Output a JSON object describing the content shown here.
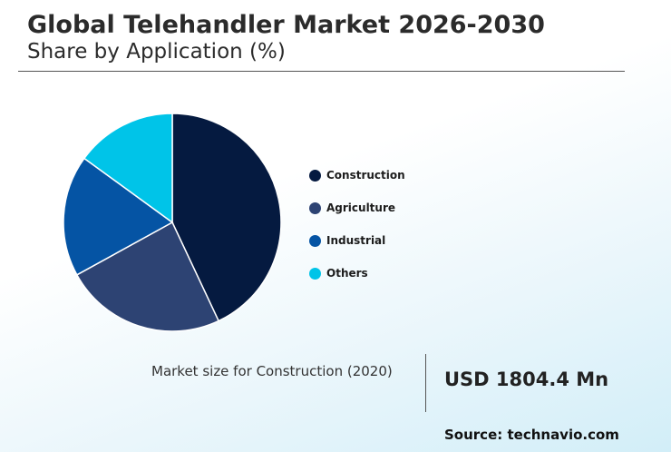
{
  "header": {
    "title": "Global Telehandler Market 2026-2030",
    "subtitle": "Share by Application (%)"
  },
  "chart_data": {
    "type": "pie",
    "title": "Global Telehandler Market 2026-2030",
    "subtitle": "Share by Application (%)",
    "legend_position": "right",
    "slices": [
      {
        "label": "Construction",
        "value": 43,
        "color": "#051a40"
      },
      {
        "label": "Agriculture",
        "value": 24,
        "color": "#2d4373"
      },
      {
        "label": "Industrial",
        "value": 18,
        "color": "#0554a4"
      },
      {
        "label": "Others",
        "value": 15,
        "color": "#00c4e8"
      }
    ]
  },
  "legend": {
    "items": [
      {
        "label": "Construction",
        "color": "#051a40"
      },
      {
        "label": "Agriculture",
        "color": "#2d4373"
      },
      {
        "label": "Industrial",
        "color": "#0554a4"
      },
      {
        "label": "Others",
        "color": "#00c4e8"
      }
    ]
  },
  "market": {
    "label": "Market size for Construction (2020)",
    "value": "USD 1804.4 Mn"
  },
  "footer": {
    "source": "Source: technavio.com"
  }
}
